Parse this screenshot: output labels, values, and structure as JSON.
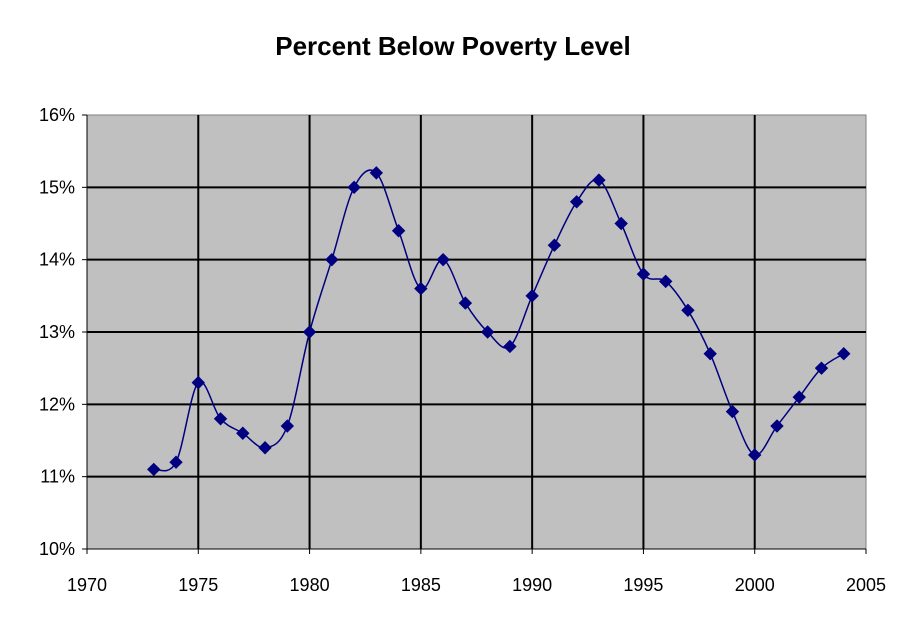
{
  "chart_data": {
    "type": "line",
    "title": "Percent Below Poverty Level",
    "xlabel": "",
    "ylabel": "",
    "xlim": [
      1970,
      2005
    ],
    "ylim": [
      10,
      16
    ],
    "x_ticks": [
      "1970",
      "1975",
      "1980",
      "1985",
      "1990",
      "1995",
      "2000",
      "2005"
    ],
    "y_ticks": [
      "10%",
      "11%",
      "12%",
      "13%",
      "14%",
      "15%",
      "16%"
    ],
    "grid": true,
    "legend": "none",
    "colors": {
      "line": "#000080",
      "marker": "#000080",
      "plot_bg": "#c0c0c0",
      "grid": "#000000"
    },
    "marker": "diamond",
    "smoothed": true,
    "series": [
      {
        "x": [
          1973,
          1974,
          1975,
          1976,
          1977,
          1978,
          1979,
          1980,
          1981,
          1982,
          1983,
          1984,
          1985,
          1986,
          1987,
          1988,
          1989,
          1990,
          1991,
          1992,
          1993,
          1994,
          1995,
          1996,
          1997,
          1998,
          1999,
          2000,
          2001,
          2002,
          2003,
          2004
        ],
        "values": [
          11.1,
          11.2,
          12.3,
          11.8,
          11.6,
          11.4,
          11.7,
          13.0,
          14.0,
          15.0,
          15.2,
          14.4,
          13.6,
          14.0,
          13.4,
          13.0,
          12.8,
          13.5,
          14.2,
          14.8,
          15.1,
          14.5,
          13.8,
          13.7,
          13.3,
          12.7,
          11.9,
          11.3,
          11.7,
          12.1,
          12.5,
          12.7
        ]
      }
    ]
  }
}
